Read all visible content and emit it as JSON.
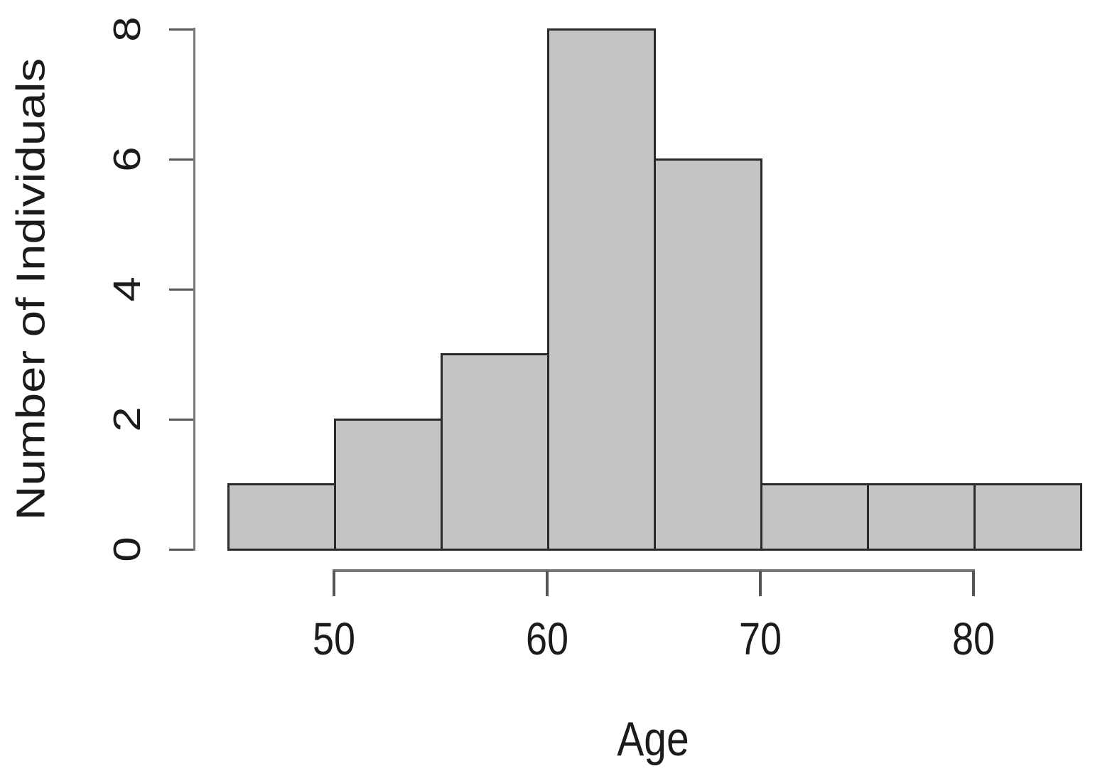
{
  "chart_data": {
    "type": "bar",
    "subtype": "histogram",
    "title": "",
    "xlabel": "Age",
    "ylabel": "Number of Individuals",
    "bin_edges": [
      45,
      50,
      55,
      60,
      65,
      70,
      75,
      80,
      85
    ],
    "counts": [
      1,
      2,
      3,
      8,
      6,
      1,
      1,
      1
    ],
    "bins": [
      {
        "range": "45-50",
        "count": 1
      },
      {
        "range": "50-55",
        "count": 2
      },
      {
        "range": "55-60",
        "count": 3
      },
      {
        "range": "60-65",
        "count": 8
      },
      {
        "range": "65-70",
        "count": 6
      },
      {
        "range": "70-75",
        "count": 1
      },
      {
        "range": "75-80",
        "count": 1
      },
      {
        "range": "80-85",
        "count": 1
      }
    ],
    "xticks": [
      50,
      60,
      70,
      80
    ],
    "yticks": [
      0,
      2,
      4,
      6,
      8
    ],
    "xlim": [
      45,
      85
    ],
    "ylim": [
      0,
      8
    ],
    "grid": false,
    "legend": false,
    "colors": {
      "background": "#ffffff",
      "bar_fill": "#c4c4c4",
      "bar_border": "#2a2a2a",
      "axis_line": "#7a7a7a",
      "tick": "#555555",
      "text": "#1b1b1b"
    }
  }
}
